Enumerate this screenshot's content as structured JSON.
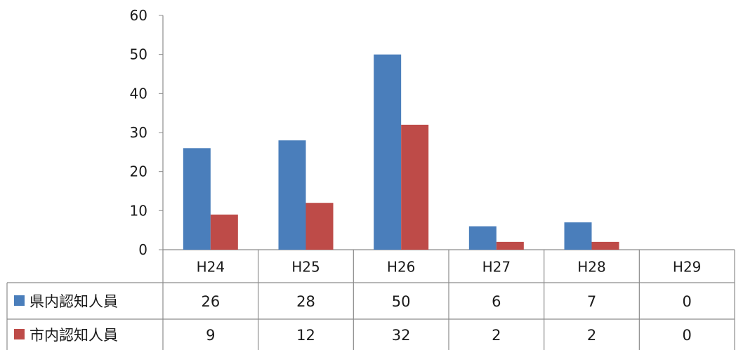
{
  "chart_data": {
    "type": "bar",
    "categories": [
      "H24",
      "H25",
      "H26",
      "H27",
      "H28",
      "H29"
    ],
    "series": [
      {
        "name": "県内認知人員",
        "values": [
          26,
          28,
          50,
          6,
          7,
          0
        ],
        "color": "#4a7ebb"
      },
      {
        "name": "市内認知人員",
        "values": [
          9,
          12,
          32,
          2,
          2,
          0
        ],
        "color": "#be4b48"
      }
    ],
    "ylim": [
      0,
      60
    ],
    "yticks": [
      0,
      10,
      20,
      30,
      40,
      50,
      60
    ],
    "grid": false,
    "legend": "data-table-rows"
  }
}
